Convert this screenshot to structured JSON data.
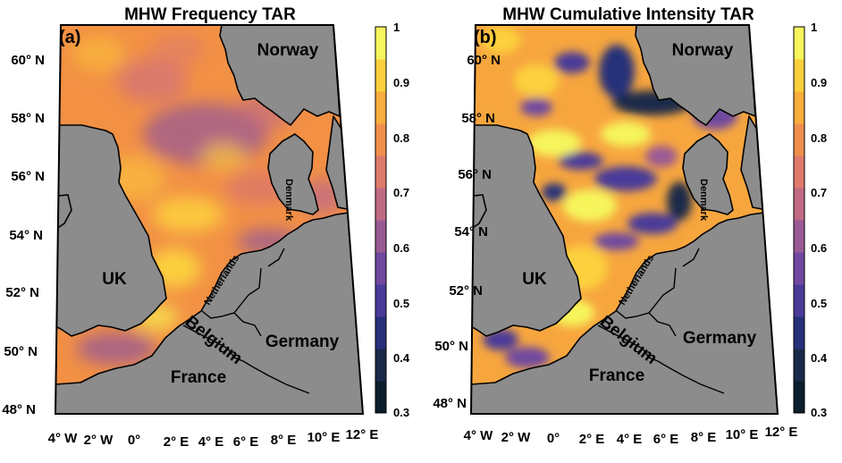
{
  "panels": [
    {
      "label": "(a)",
      "title": "MHW Frequency TAR",
      "lat_labels": [
        "60° N",
        "58° N",
        "56° N",
        "54° N",
        "52° N",
        "50° N",
        "48° N"
      ],
      "lon_labels": [
        "4° W",
        "2° W",
        "0°",
        "2° E",
        "4° E",
        "6° E",
        "8° E",
        "10° E",
        "12° E"
      ],
      "countries": {
        "norway": "Norway",
        "uk": "UK",
        "denmark": "Denmark",
        "netherlands": "Netherlands",
        "belgium": "Belgium",
        "germany": "Germany",
        "france": "France"
      },
      "colorbar": {
        "min": 0.3,
        "max": 1,
        "ticks": [
          "1",
          "0.9",
          "0.8",
          "0.7",
          "0.6",
          "0.5",
          "0.4",
          "0.3"
        ]
      }
    },
    {
      "label": "(b)",
      "title": "MHW Cumulative Intensity TAR",
      "lat_labels": [
        "60° N",
        "58° N",
        "56° N",
        "54° N",
        "52° N",
        "50° N",
        "48° N"
      ],
      "lon_labels": [
        "4° W",
        "2° W",
        "0°",
        "2° E",
        "4° E",
        "6° E",
        "8° E",
        "10° E",
        "12° E"
      ],
      "countries": {
        "norway": "Norway",
        "uk": "UK",
        "denmark": "Denmark",
        "netherlands": "Netherlands",
        "belgium": "Belgium",
        "germany": "Germany",
        "france": "France"
      },
      "colorbar": {
        "min": 0.3,
        "max": 1,
        "ticks": [
          "1",
          "0.9",
          "0.8",
          "0.7",
          "0.6",
          "0.5",
          "0.4",
          "0.3"
        ]
      }
    }
  ],
  "colors": {
    "land": "#8c8c8c",
    "colormap": [
      "#0b1e2b",
      "#1b2a4a",
      "#27307a",
      "#4a3a9a",
      "#7048a0",
      "#9a5a94",
      "#c06a84",
      "#de7a6c",
      "#f08f4c",
      "#f8ad3c",
      "#fcd03c",
      "#f6f55c"
    ]
  }
}
